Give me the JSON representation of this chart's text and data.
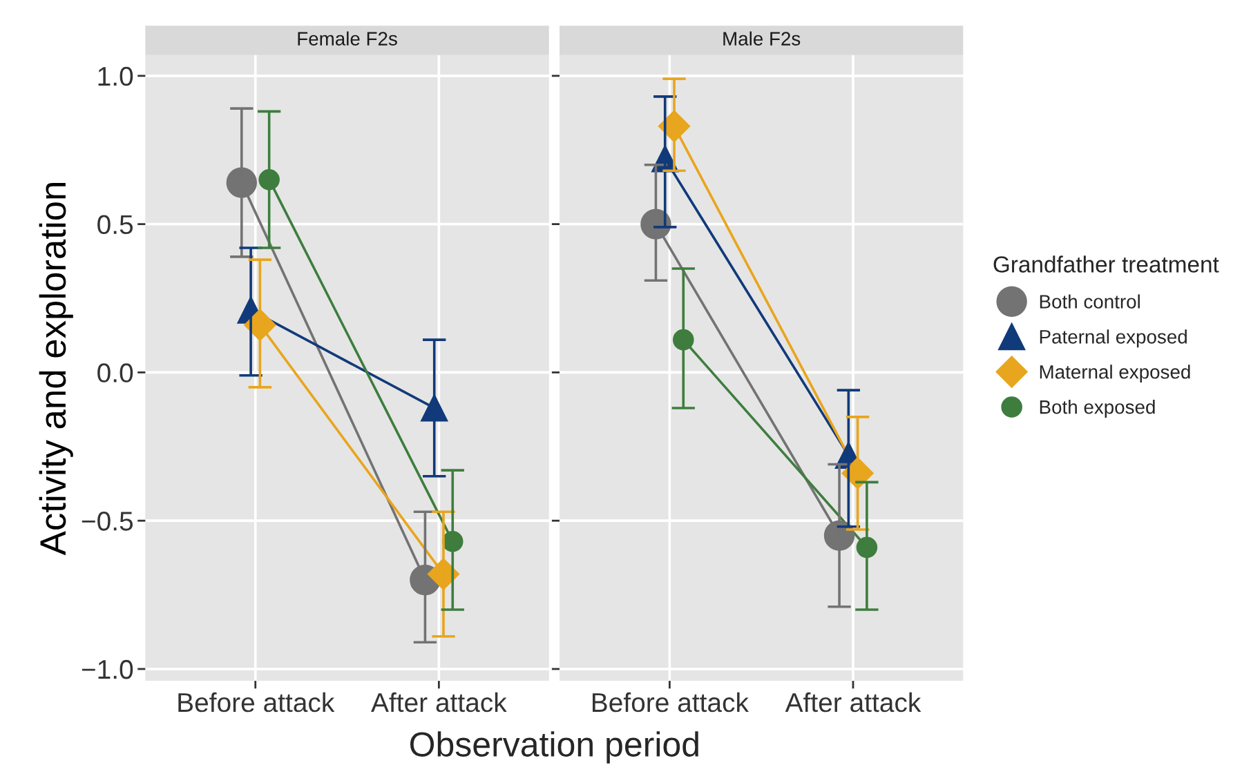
{
  "chart_data": [
    {
      "type": "line",
      "title": "Female F2s",
      "xlabel": "Observation period",
      "ylabel": "Activity and exploration",
      "categories": [
        "Before attack",
        "After attack"
      ],
      "ylim": [
        -1.04,
        1.07
      ],
      "yticks": [
        {
          "value": -1.0,
          "label": "−1.0"
        },
        {
          "value": -0.5,
          "label": "−0.5"
        },
        {
          "value": 0.0,
          "label": "0.0"
        },
        {
          "value": 0.5,
          "label": "0.5"
        },
        {
          "value": 1.0,
          "label": "1.0"
        }
      ],
      "grid": true,
      "series": [
        {
          "color": "#737373",
          "marker": "circle",
          "values": [
            0.64,
            -0.7
          ],
          "errors": [
            [
              0.39,
              0.89
            ],
            [
              -0.91,
              -0.47
            ]
          ]
        },
        {
          "color": "#113a7a",
          "marker": "triangle",
          "values": [
            0.21,
            -0.12
          ],
          "errors": [
            [
              -0.01,
              0.42
            ],
            [
              -0.35,
              0.11
            ]
          ]
        },
        {
          "color": "#e8a51e",
          "marker": "diamond",
          "values": [
            0.16,
            -0.68
          ],
          "errors": [
            [
              -0.05,
              0.38
            ],
            [
              -0.89,
              -0.47
            ]
          ]
        },
        {
          "color": "#3e7d3e",
          "marker": "circle",
          "values": [
            0.65,
            -0.57
          ],
          "errors": [
            [
              0.42,
              0.88
            ],
            [
              -0.8,
              -0.33
            ]
          ]
        }
      ]
    },
    {
      "type": "line",
      "title": "Male F2s",
      "categories": [
        "Before attack",
        "After attack"
      ],
      "ylim": [
        -1.04,
        1.07
      ],
      "yticks": [
        -1.0,
        -0.5,
        0.0,
        0.5,
        1.0
      ],
      "tick_labels": "x",
      "grid": true,
      "legend": "right",
      "legend_title": "Grandfather treatment",
      "series": [
        {
          "name": "Both control",
          "color": "#737373",
          "marker": "circle",
          "values": [
            0.5,
            -0.55
          ],
          "errors": [
            [
              0.31,
              0.7
            ],
            [
              -0.79,
              -0.31
            ]
          ]
        },
        {
          "name": "Paternal exposed",
          "color": "#113a7a",
          "marker": "triangle",
          "values": [
            0.72,
            -0.28
          ],
          "errors": [
            [
              0.49,
              0.93
            ],
            [
              -0.52,
              -0.06
            ]
          ]
        },
        {
          "name": "Maternal exposed",
          "color": "#e8a51e",
          "marker": "diamond",
          "values": [
            0.83,
            -0.34
          ],
          "errors": [
            [
              0.68,
              0.99
            ],
            [
              -0.53,
              -0.15
            ]
          ]
        },
        {
          "name": "Both exposed",
          "color": "#3e7d3e",
          "marker": "circle",
          "values": [
            0.11,
            -0.59
          ],
          "errors": [
            [
              -0.12,
              0.35
            ],
            [
              -0.8,
              -0.37
            ]
          ]
        }
      ]
    }
  ]
}
